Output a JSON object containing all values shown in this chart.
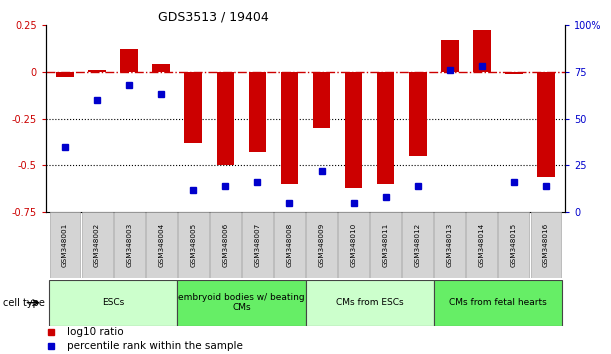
{
  "title": "GDS3513 / 19404",
  "samples": [
    "GSM348001",
    "GSM348002",
    "GSM348003",
    "GSM348004",
    "GSM348005",
    "GSM348006",
    "GSM348007",
    "GSM348008",
    "GSM348009",
    "GSM348010",
    "GSM348011",
    "GSM348012",
    "GSM348013",
    "GSM348014",
    "GSM348015",
    "GSM348016"
  ],
  "log10_ratio": [
    -0.03,
    0.01,
    0.12,
    0.04,
    -0.38,
    -0.5,
    -0.43,
    -0.6,
    -0.3,
    -0.62,
    -0.6,
    -0.45,
    0.17,
    0.22,
    -0.01,
    -0.56
  ],
  "percentile_rank": [
    35,
    60,
    68,
    63,
    12,
    14,
    16,
    5,
    22,
    5,
    8,
    14,
    76,
    78,
    16,
    14
  ],
  "ylim_left": [
    -0.75,
    0.25
  ],
  "ylim_right": [
    0,
    100
  ],
  "bar_color": "#cc0000",
  "dot_color": "#0000cc",
  "dashed_line_color": "#cc0000",
  "grid_line_color": "#000000",
  "left_yticks": [
    0.25,
    0,
    -0.25,
    -0.5,
    -0.75
  ],
  "left_yticklabels": [
    "0.25",
    "0",
    "-0.25",
    "-0.5",
    "-0.75"
  ],
  "right_yticks": [
    0,
    25,
    50,
    75,
    100
  ],
  "right_yticklabels": [
    "0",
    "25",
    "50",
    "75",
    "100%"
  ],
  "cell_types": [
    {
      "label": "ESCs",
      "start": 0,
      "end": 4,
      "color": "#ccffcc"
    },
    {
      "label": "embryoid bodies w/ beating\nCMs",
      "start": 4,
      "end": 8,
      "color": "#66ee66"
    },
    {
      "label": "CMs from ESCs",
      "start": 8,
      "end": 12,
      "color": "#ccffcc"
    },
    {
      "label": "CMs from fetal hearts",
      "start": 12,
      "end": 16,
      "color": "#66ee66"
    }
  ],
  "bg_color": "#ffffff",
  "bar_width": 0.55,
  "dot_size": 5
}
